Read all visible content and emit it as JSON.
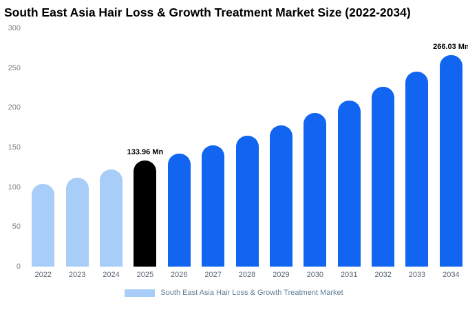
{
  "title": "South East Asia Hair Loss & Growth Treatment Market Size (2022-2034)",
  "legend": {
    "label": "South East Asia Hair Loss & Growth Treatment Market",
    "swatch_color": "#a8cdf8"
  },
  "colors": {
    "light_blue": "#a8cdf8",
    "primary_blue": "#1165f0",
    "highlight_black": "#000000"
  },
  "chart_data": {
    "type": "bar",
    "title": "South East Asia Hair Loss & Growth Treatment Market Size (2022-2034)",
    "categories": [
      "2022",
      "2023",
      "2024",
      "2025",
      "2026",
      "2027",
      "2028",
      "2029",
      "2030",
      "2031",
      "2032",
      "2033",
      "2034"
    ],
    "values": [
      104,
      112,
      122,
      133.96,
      142,
      153,
      165,
      178,
      193,
      209,
      226,
      245,
      266.03
    ],
    "bar_colors": [
      "#a8cdf8",
      "#a8cdf8",
      "#a8cdf8",
      "#000000",
      "#1165f0",
      "#1165f0",
      "#1165f0",
      "#1165f0",
      "#1165f0",
      "#1165f0",
      "#1165f0",
      "#1165f0",
      "#1165f0"
    ],
    "annotations": [
      {
        "index": 3,
        "text": "133.96 Mn"
      },
      {
        "index": 12,
        "text": "266.03 Mn"
      }
    ],
    "xlabel": "",
    "ylabel": "",
    "ylim": [
      0,
      300
    ],
    "yticks": [
      0,
      50,
      100,
      150,
      200,
      250,
      300
    ],
    "grid": false,
    "legend_position": "bottom"
  }
}
